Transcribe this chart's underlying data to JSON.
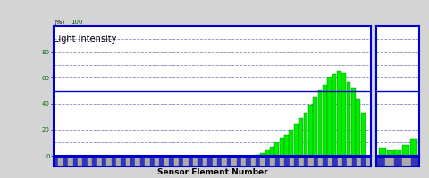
{
  "ylabel_pct": "(%)",
  "ylabel_main": "Light Intensity",
  "xlabel": "Sensor Element Number",
  "ylim": [
    0,
    100
  ],
  "yticks": [
    0,
    20,
    40,
    60,
    80
  ],
  "ytick_labels": [
    "0",
    "20",
    "40",
    "60",
    "80"
  ],
  "solid_hline": 50,
  "dashed_grid_levels": [
    10,
    20,
    30,
    40,
    60,
    70,
    80,
    90
  ],
  "main_xticks": [
    5,
    10,
    15,
    20,
    25,
    30,
    35,
    40,
    45,
    50,
    55,
    60,
    65
  ],
  "right_xticks": [
    5
  ],
  "bar_color": "#00ee00",
  "bar_edge_color": "#008800",
  "border_color": "#0000cc",
  "bg_color": "#ffffff",
  "stripe_blue": "#3333bb",
  "stripe_gray": "#aaaaaa",
  "main_values": {
    "1": 0,
    "2": 0,
    "3": 0,
    "4": 0,
    "5": 0,
    "6": 0,
    "7": 0,
    "8": 0,
    "9": 0,
    "10": 0,
    "11": 0,
    "12": 0,
    "13": 0,
    "14": 0,
    "15": 0,
    "16": 0,
    "17": 0,
    "18": 0,
    "19": 0,
    "20": 0,
    "21": 0,
    "22": 0,
    "23": 0,
    "24": 0,
    "25": 0,
    "26": 0,
    "27": 0,
    "28": 0,
    "29": 0,
    "30": 0,
    "31": 0,
    "32": 0,
    "33": 0,
    "34": 0,
    "35": 0,
    "36": 0,
    "37": 0,
    "38": 0,
    "39": 0,
    "40": 0,
    "41": 0,
    "42": 0,
    "43": 1,
    "44": 2,
    "45": 5,
    "46": 7,
    "47": 10,
    "48": 14,
    "49": 16,
    "50": 20,
    "51": 25,
    "52": 29,
    "53": 33,
    "54": 39,
    "55": 45,
    "56": 51,
    "57": 55,
    "58": 60,
    "59": 63,
    "60": 65,
    "61": 64,
    "62": 57,
    "63": 52,
    "64": 44,
    "65": 33,
    "66": 0
  },
  "right_values": {
    "1": 6,
    "2": 4,
    "3": 5,
    "4": 8,
    "5": 13
  },
  "figsize": [
    4.8,
    2.0
  ],
  "dpi": 100
}
